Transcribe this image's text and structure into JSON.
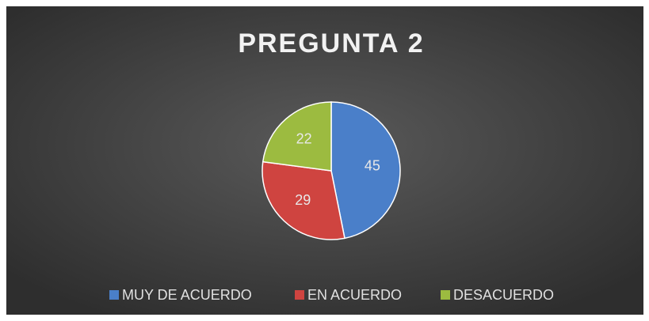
{
  "chart_data": {
    "type": "pie",
    "title": "PREGUNTA 2",
    "categories": [
      "MUY DE ACUERDO",
      "EN ACUERDO",
      "DESACUERDO"
    ],
    "values": [
      45,
      29,
      22
    ],
    "colors": [
      "#4a7fc9",
      "#cf4440",
      "#9cbb40"
    ],
    "legend": "bottom"
  }
}
